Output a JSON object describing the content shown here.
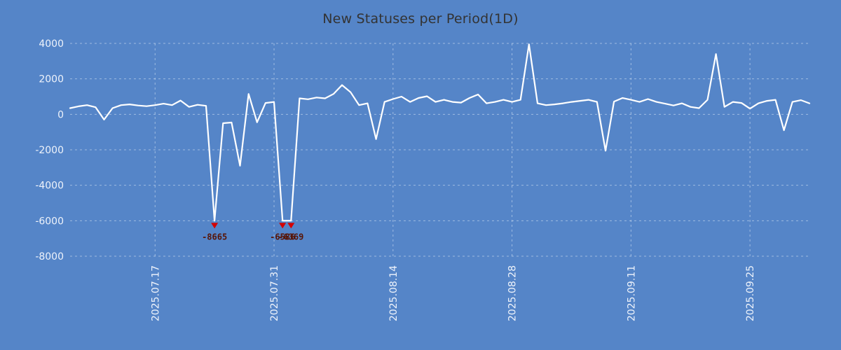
{
  "chart_data": {
    "type": "line",
    "title": "New Statuses per Period(1D)",
    "ylim": [
      -8000,
      4000
    ],
    "yticks": [
      4000,
      2000,
      0,
      -2000,
      -4000,
      -6000,
      -8000
    ],
    "clip_min": -6000,
    "grid": true,
    "legend": "none",
    "xticks": [
      "2025.07.17",
      "2025.07.31",
      "2025.08.14",
      "2025.08.28",
      "2025.09.11",
      "2025.09.25"
    ],
    "x": [
      "2025.07.07",
      "2025.07.08",
      "2025.07.09",
      "2025.07.10",
      "2025.07.11",
      "2025.07.12",
      "2025.07.13",
      "2025.07.14",
      "2025.07.15",
      "2025.07.16",
      "2025.07.17",
      "2025.07.18",
      "2025.07.19",
      "2025.07.20",
      "2025.07.21",
      "2025.07.22",
      "2025.07.23",
      "2025.07.24",
      "2025.07.25",
      "2025.07.26",
      "2025.07.27",
      "2025.07.28",
      "2025.07.29",
      "2025.07.30",
      "2025.07.31",
      "2025.08.01",
      "2025.08.02",
      "2025.08.03",
      "2025.08.04",
      "2025.08.05",
      "2025.08.06",
      "2025.08.07",
      "2025.08.08",
      "2025.08.09",
      "2025.08.10",
      "2025.08.11",
      "2025.08.12",
      "2025.08.13",
      "2025.08.14",
      "2025.08.15",
      "2025.08.16",
      "2025.08.17",
      "2025.08.18",
      "2025.08.19",
      "2025.08.20",
      "2025.08.21",
      "2025.08.22",
      "2025.08.23",
      "2025.08.24",
      "2025.08.25",
      "2025.08.26",
      "2025.08.27",
      "2025.08.28",
      "2025.08.29",
      "2025.08.30",
      "2025.08.31",
      "2025.09.01",
      "2025.09.02",
      "2025.09.03",
      "2025.09.04",
      "2025.09.05",
      "2025.09.06",
      "2025.09.07",
      "2025.09.08",
      "2025.09.09",
      "2025.09.10",
      "2025.09.11",
      "2025.09.12",
      "2025.09.13",
      "2025.09.14",
      "2025.09.15",
      "2025.09.16",
      "2025.09.17",
      "2025.09.18",
      "2025.09.19",
      "2025.09.20",
      "2025.09.21",
      "2025.09.22",
      "2025.09.23",
      "2025.09.24",
      "2025.09.25",
      "2025.09.26",
      "2025.09.27",
      "2025.09.28",
      "2025.09.29",
      "2025.09.30",
      "2025.10.01",
      "2025.10.02"
    ],
    "values": [
      350,
      450,
      520,
      400,
      -300,
      350,
      520,
      560,
      500,
      460,
      520,
      600,
      520,
      780,
      420,
      540,
      480,
      -8665,
      -500,
      -460,
      -2900,
      1150,
      -450,
      640,
      700,
      -6586,
      -6369,
      900,
      850,
      950,
      900,
      1150,
      1650,
      1250,
      520,
      620,
      -1400,
      700,
      860,
      1000,
      700,
      920,
      1020,
      700,
      820,
      700,
      660,
      920,
      1120,
      620,
      700,
      820,
      700,
      820,
      3950,
      620,
      520,
      560,
      620,
      700,
      760,
      820,
      700,
      -2050,
      720,
      920,
      820,
      700,
      860,
      700,
      600,
      500,
      620,
      420,
      350,
      820,
      3400,
      420,
      700,
      640,
      320,
      620,
      760,
      820,
      -900,
      700,
      800,
      620
    ],
    "annotations": [
      {
        "date": "2025.07.24",
        "value": -8665,
        "label": "-8665"
      },
      {
        "date": "2025.08.01",
        "value": -6586,
        "label": "-6586"
      },
      {
        "date": "2025.08.02",
        "value": -6369,
        "label": "-6369"
      }
    ],
    "colors": {
      "background": "#5585c8",
      "line": "#ffffff",
      "grid": "#dbe7f5",
      "tick_label": "#eef3fb",
      "title": "#333333",
      "marker": "#d40000",
      "marker_label": "#571507"
    }
  }
}
